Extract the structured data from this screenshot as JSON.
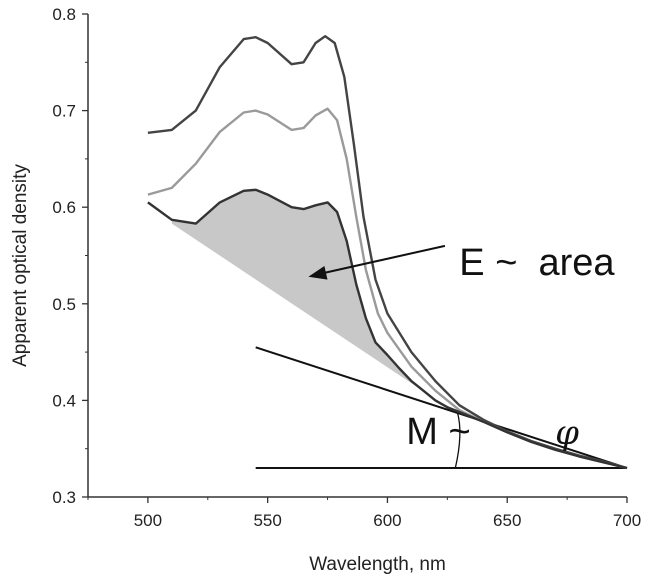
{
  "chart_data": {
    "type": "line",
    "xlabel": "Wavelength,  nm",
    "ylabel": "Apparent optical density",
    "xlim": [
      475,
      700
    ],
    "ylim": [
      0.3,
      0.8
    ],
    "x_ticks": [
      500,
      550,
      600,
      650,
      700
    ],
    "y_ticks": [
      0.3,
      0.4,
      0.5,
      0.6,
      0.7,
      0.8
    ],
    "x_tick_labels": [
      "500",
      "550",
      "600",
      "650",
      "700"
    ],
    "y_tick_labels": [
      "0.3",
      "0.4",
      "0.5",
      "0.6",
      "0.7",
      "0.8"
    ],
    "grid": false,
    "series": [
      {
        "color": "#444444",
        "points": [
          [
            500,
            0.677
          ],
          [
            510,
            0.68
          ],
          [
            520,
            0.7
          ],
          [
            530,
            0.745
          ],
          [
            540,
            0.774
          ],
          [
            545,
            0.776
          ],
          [
            550,
            0.77
          ],
          [
            560,
            0.748
          ],
          [
            565,
            0.75
          ],
          [
            570,
            0.77
          ],
          [
            574,
            0.777
          ],
          [
            578,
            0.77
          ],
          [
            582,
            0.735
          ],
          [
            586,
            0.665
          ],
          [
            590,
            0.59
          ],
          [
            595,
            0.525
          ],
          [
            600,
            0.49
          ],
          [
            610,
            0.45
          ],
          [
            620,
            0.42
          ],
          [
            630,
            0.395
          ],
          [
            640,
            0.38
          ],
          [
            650,
            0.368
          ],
          [
            660,
            0.358
          ],
          [
            670,
            0.35
          ],
          [
            680,
            0.343
          ],
          [
            690,
            0.337
          ],
          [
            700,
            0.33
          ]
        ]
      },
      {
        "color": "#9a9a9a",
        "points": [
          [
            500,
            0.613
          ],
          [
            510,
            0.62
          ],
          [
            520,
            0.645
          ],
          [
            530,
            0.678
          ],
          [
            540,
            0.698
          ],
          [
            545,
            0.7
          ],
          [
            550,
            0.696
          ],
          [
            560,
            0.68
          ],
          [
            565,
            0.682
          ],
          [
            570,
            0.695
          ],
          [
            575,
            0.702
          ],
          [
            579,
            0.69
          ],
          [
            583,
            0.65
          ],
          [
            587,
            0.59
          ],
          [
            591,
            0.535
          ],
          [
            596,
            0.49
          ],
          [
            600,
            0.47
          ],
          [
            610,
            0.435
          ],
          [
            620,
            0.41
          ],
          [
            630,
            0.39
          ],
          [
            640,
            0.378
          ],
          [
            650,
            0.367
          ],
          [
            660,
            0.357
          ],
          [
            670,
            0.349
          ],
          [
            680,
            0.342
          ],
          [
            690,
            0.336
          ],
          [
            700,
            0.33
          ]
        ]
      },
      {
        "color": "#333333",
        "points": [
          [
            500,
            0.605
          ],
          [
            510,
            0.587
          ],
          [
            520,
            0.583
          ],
          [
            530,
            0.605
          ],
          [
            540,
            0.617
          ],
          [
            545,
            0.618
          ],
          [
            550,
            0.613
          ],
          [
            560,
            0.6
          ],
          [
            565,
            0.598
          ],
          [
            570,
            0.602
          ],
          [
            575,
            0.605
          ],
          [
            579,
            0.595
          ],
          [
            583,
            0.565
          ],
          [
            587,
            0.52
          ],
          [
            591,
            0.485
          ],
          [
            595,
            0.46
          ],
          [
            600,
            0.447
          ],
          [
            605,
            0.433
          ],
          [
            610,
            0.42
          ],
          [
            615,
            0.41
          ],
          [
            620,
            0.4
          ],
          [
            625,
            0.393
          ],
          [
            630,
            0.388
          ],
          [
            640,
            0.378
          ],
          [
            650,
            0.367
          ],
          [
            660,
            0.357
          ],
          [
            670,
            0.349
          ],
          [
            680,
            0.342
          ],
          [
            690,
            0.336
          ],
          [
            700,
            0.33
          ]
        ]
      }
    ],
    "shaded_area": {
      "fill": "#c8c8c8",
      "baseline_from": [
        510,
        0.583
      ],
      "baseline_to": [
        625,
        0.393
      ]
    },
    "tangent_line": {
      "from": [
        545,
        0.455
      ],
      "to": [
        700,
        0.33
      ]
    },
    "horizontal_line": {
      "from": [
        545,
        0.33
      ],
      "to": [
        700,
        0.33
      ]
    },
    "angle_arc": {
      "center": [
        625,
        0.392
      ],
      "from_angle_deg": -90,
      "to_angle_deg": -160
    },
    "annotations": [
      {
        "id": "energy",
        "text": "E ~  area",
        "text_at": [
          630,
          0.53
        ],
        "arrow_from": [
          624,
          0.56
        ],
        "arrow_to": [
          567,
          0.528
        ]
      },
      {
        "id": "magnitude",
        "text": "M ~ ",
        "symbol": "φ",
        "text_at": [
          577,
          0.355
        ]
      }
    ],
    "colors": {
      "axis": "#333333",
      "shade": "#c8c8c8",
      "line_dark": "#444444",
      "line_light": "#9a9a9a",
      "line_mid": "#333333"
    }
  }
}
